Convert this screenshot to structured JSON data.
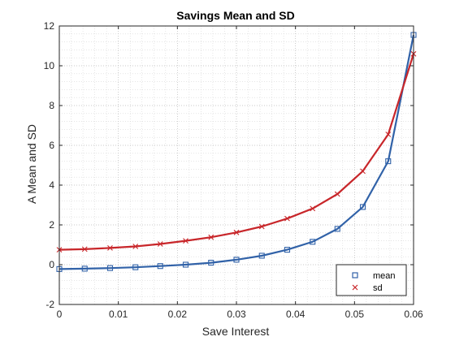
{
  "chart_data": {
    "type": "line",
    "title": "Savings Mean and SD",
    "xlabel": "Save Interest",
    "ylabel": "A Mean and SD",
    "xlim": [
      0,
      0.06
    ],
    "ylim": [
      -2,
      12
    ],
    "xticks": [
      "0",
      "0.01",
      "0.02",
      "0.03",
      "0.04",
      "0.05",
      "0.06"
    ],
    "yticks": [
      "-2",
      "0",
      "2",
      "4",
      "6",
      "8",
      "10",
      "12"
    ],
    "grid": "major and minor dotted",
    "legend_location": "bottom-right",
    "series": [
      {
        "name": "mean",
        "color": "#3162A8",
        "marker": "square",
        "x": [
          0,
          0.0043,
          0.0086,
          0.0129,
          0.0171,
          0.0214,
          0.0257,
          0.03,
          0.0343,
          0.0386,
          0.0429,
          0.0471,
          0.0514,
          0.0557,
          0.06
        ],
        "y": [
          -0.22,
          -0.2,
          -0.17,
          -0.13,
          -0.07,
          0.0,
          0.1,
          0.25,
          0.45,
          0.75,
          1.15,
          1.8,
          2.9,
          5.2,
          11.55
        ]
      },
      {
        "name": "sd",
        "color": "#C8262A",
        "marker": "x",
        "x": [
          0,
          0.0043,
          0.0086,
          0.0129,
          0.0171,
          0.0214,
          0.0257,
          0.03,
          0.0343,
          0.0386,
          0.0429,
          0.0471,
          0.0514,
          0.0557,
          0.06
        ],
        "y": [
          0.75,
          0.78,
          0.84,
          0.92,
          1.04,
          1.2,
          1.38,
          1.62,
          1.92,
          2.32,
          2.82,
          3.55,
          4.7,
          6.55,
          10.6
        ]
      }
    ]
  }
}
